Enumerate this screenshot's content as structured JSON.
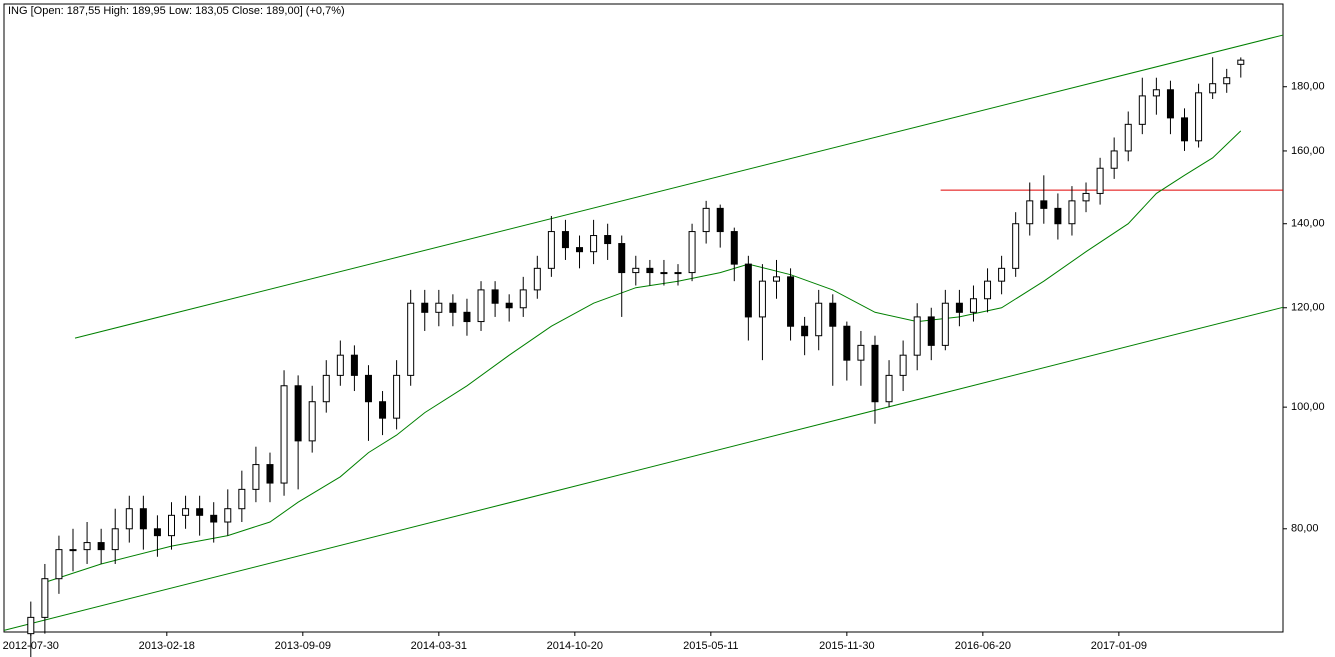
{
  "chart_data": {
    "type": "candlestick",
    "title": "ING [Open: 187,55  High: 189,95  Low: 183,05  Close: 189,00]  (+0,7%)",
    "log_y": true,
    "grid": false,
    "up_color": "#ffffff",
    "down_color": "#000000",
    "xlim": [
      "2012-06-20",
      "2017-09-11"
    ],
    "xticks": [
      "2012-07-30",
      "2013-02-18",
      "2013-09-09",
      "2014-03-31",
      "2014-10-20",
      "2015-05-11",
      "2015-11-30",
      "2016-06-20",
      "2017-01-09"
    ],
    "ylim": [
      66.2,
      209.5
    ],
    "yticks": [
      {
        "value": 80,
        "label": "80,00"
      },
      {
        "value": 100,
        "label": "100,00"
      },
      {
        "value": 120,
        "label": "120,00"
      },
      {
        "value": 140,
        "label": "140,00"
      },
      {
        "value": 160,
        "label": "160,00"
      },
      {
        "value": 180,
        "label": "180,00"
      }
    ],
    "x": [
      "2012-07-30",
      "2012-08-20",
      "2012-09-10",
      "2012-10-01",
      "2012-10-22",
      "2012-11-12",
      "2012-12-03",
      "2012-12-24",
      "2013-01-14",
      "2013-02-04",
      "2013-02-25",
      "2013-03-18",
      "2013-04-08",
      "2013-04-29",
      "2013-05-20",
      "2013-06-10",
      "2013-07-01",
      "2013-07-22",
      "2013-08-12",
      "2013-09-02",
      "2013-09-23",
      "2013-10-14",
      "2013-11-04",
      "2013-11-25",
      "2013-12-16",
      "2014-01-06",
      "2014-01-27",
      "2014-02-17",
      "2014-03-10",
      "2014-03-31",
      "2014-04-21",
      "2014-05-12",
      "2014-06-02",
      "2014-06-23",
      "2014-07-14",
      "2014-08-04",
      "2014-08-25",
      "2014-09-15",
      "2014-10-06",
      "2014-10-27",
      "2014-11-17",
      "2014-12-08",
      "2014-12-29",
      "2015-01-19",
      "2015-02-09",
      "2015-03-02",
      "2015-03-23",
      "2015-04-13",
      "2015-05-04",
      "2015-05-25",
      "2015-06-15",
      "2015-07-06",
      "2015-07-27",
      "2015-08-17",
      "2015-09-07",
      "2015-09-28",
      "2015-10-19",
      "2015-11-09",
      "2015-11-30",
      "2015-12-21",
      "2016-01-11",
      "2016-02-01",
      "2016-02-22",
      "2016-03-14",
      "2016-04-04",
      "2016-04-25",
      "2016-05-16",
      "2016-06-06",
      "2016-06-27",
      "2016-07-18",
      "2016-08-08",
      "2016-08-29",
      "2016-09-19",
      "2016-10-10",
      "2016-10-31",
      "2016-11-21",
      "2016-12-12",
      "2017-01-02",
      "2017-01-23",
      "2017-02-13",
      "2017-03-06",
      "2017-03-27",
      "2017-04-17",
      "2017-05-08",
      "2017-05-29",
      "2017-06-19",
      "2017-07-10"
    ],
    "open": [
      66,
      68,
      73,
      77,
      77,
      78,
      77,
      80,
      83,
      80,
      79,
      82,
      83,
      82,
      81,
      83,
      86,
      90,
      87,
      104,
      94,
      101,
      106,
      110,
      106,
      101,
      98,
      106,
      121,
      119,
      121,
      119,
      117,
      124,
      121,
      120,
      124,
      129,
      138,
      134,
      133,
      137,
      135,
      128,
      129,
      128,
      128,
      128,
      138,
      144,
      138,
      130,
      118,
      126,
      127,
      116,
      114,
      121,
      116,
      109,
      112,
      101,
      106,
      110,
      118,
      112,
      121,
      119,
      122,
      126,
      129,
      140,
      146,
      144,
      140,
      146,
      148,
      155,
      160,
      168,
      177,
      179,
      170,
      163,
      178,
      181,
      187.55
    ],
    "high": [
      70,
      75,
      79,
      80,
      81,
      80,
      83,
      85,
      85,
      82,
      84,
      85,
      85,
      84,
      86,
      89,
      93,
      92,
      107,
      106,
      104,
      109,
      113,
      112,
      108,
      103,
      109,
      124,
      124,
      124,
      123,
      122,
      126,
      126,
      123,
      127,
      132,
      142,
      141,
      137,
      141,
      140,
      137,
      132,
      131,
      131,
      130,
      140,
      146,
      145,
      139,
      132,
      130,
      131,
      129,
      118,
      124,
      123,
      117,
      115,
      114,
      109,
      113,
      121,
      120,
      124,
      124,
      125,
      129,
      132,
      143,
      151,
      153,
      148,
      150,
      151,
      158,
      164,
      172,
      183,
      183,
      182,
      173,
      181,
      190,
      186,
      189.95
    ],
    "low": [
      63,
      66,
      71,
      74,
      75,
      75,
      75,
      78,
      77,
      76,
      77,
      80,
      79,
      78,
      79,
      81,
      84,
      84,
      85,
      86,
      92,
      99,
      104,
      103,
      94,
      95,
      96,
      104,
      115,
      116,
      116,
      114,
      115,
      118,
      117,
      118,
      122,
      127,
      131,
      129,
      130,
      131,
      118,
      125,
      125,
      125,
      125,
      126,
      135,
      134,
      126,
      113,
      109,
      122,
      113,
      110,
      111,
      104,
      105,
      104,
      97,
      100,
      103,
      107,
      109,
      111,
      116,
      117,
      119,
      123,
      127,
      137,
      140,
      136,
      137,
      143,
      145,
      152,
      157,
      165,
      171,
      165,
      160,
      161,
      176,
      178,
      183.05
    ],
    "close": [
      68,
      73,
      77,
      77,
      78,
      77,
      80,
      83,
      80,
      79,
      82,
      83,
      82,
      81,
      83,
      86,
      90,
      87,
      104,
      94,
      101,
      106,
      110,
      106,
      101,
      98,
      106,
      121,
      119,
      121,
      119,
      117,
      124,
      121,
      120,
      124,
      129,
      138,
      134,
      133,
      137,
      135,
      128,
      129,
      128,
      128,
      128,
      138,
      144,
      138,
      130,
      118,
      126,
      127,
      116,
      114,
      121,
      116,
      109,
      112,
      101,
      106,
      110,
      118,
      112,
      121,
      119,
      122,
      126,
      129,
      140,
      146,
      144,
      140,
      146,
      148,
      155,
      160,
      168,
      177,
      179,
      170,
      163,
      178,
      181,
      183,
      189
    ],
    "moving_average": {
      "color": "#008000",
      "x": [
        "2012-08-20",
        "2012-11-12",
        "2013-02-25",
        "2013-05-20",
        "2013-07-22",
        "2013-09-02",
        "2013-11-04",
        "2013-12-16",
        "2014-01-27",
        "2014-03-10",
        "2014-05-12",
        "2014-07-14",
        "2014-09-15",
        "2014-11-17",
        "2015-01-19",
        "2015-03-23",
        "2015-05-25",
        "2015-07-06",
        "2015-09-07",
        "2015-11-09",
        "2016-01-11",
        "2016-03-14",
        "2016-05-16",
        "2016-07-18",
        "2016-09-19",
        "2016-11-21",
        "2017-01-23",
        "2017-03-06",
        "2017-04-17",
        "2017-05-29",
        "2017-07-10"
      ],
      "values": [
        72.5,
        75,
        77.5,
        79,
        81,
        84,
        88,
        92,
        95,
        99,
        104,
        110,
        116,
        121,
        124.5,
        126,
        128,
        130,
        127.5,
        124,
        119,
        117,
        118,
        120,
        126,
        133,
        140,
        148,
        153,
        158,
        166
      ]
    },
    "lines": [
      {
        "color": "#008000",
        "x": [
          "2012-10-04",
          "2017-09-11"
        ],
        "values": [
          113.5,
          197.9
        ]
      },
      {
        "color": "#008000",
        "x": [
          "2012-06-20",
          "2017-09-11"
        ],
        "values": [
          66.4,
          120.1
        ]
      },
      {
        "color": "#e00000",
        "x": [
          "2016-04-18",
          "2017-09-11"
        ],
        "values": [
          148.9,
          148.9
        ]
      }
    ]
  }
}
